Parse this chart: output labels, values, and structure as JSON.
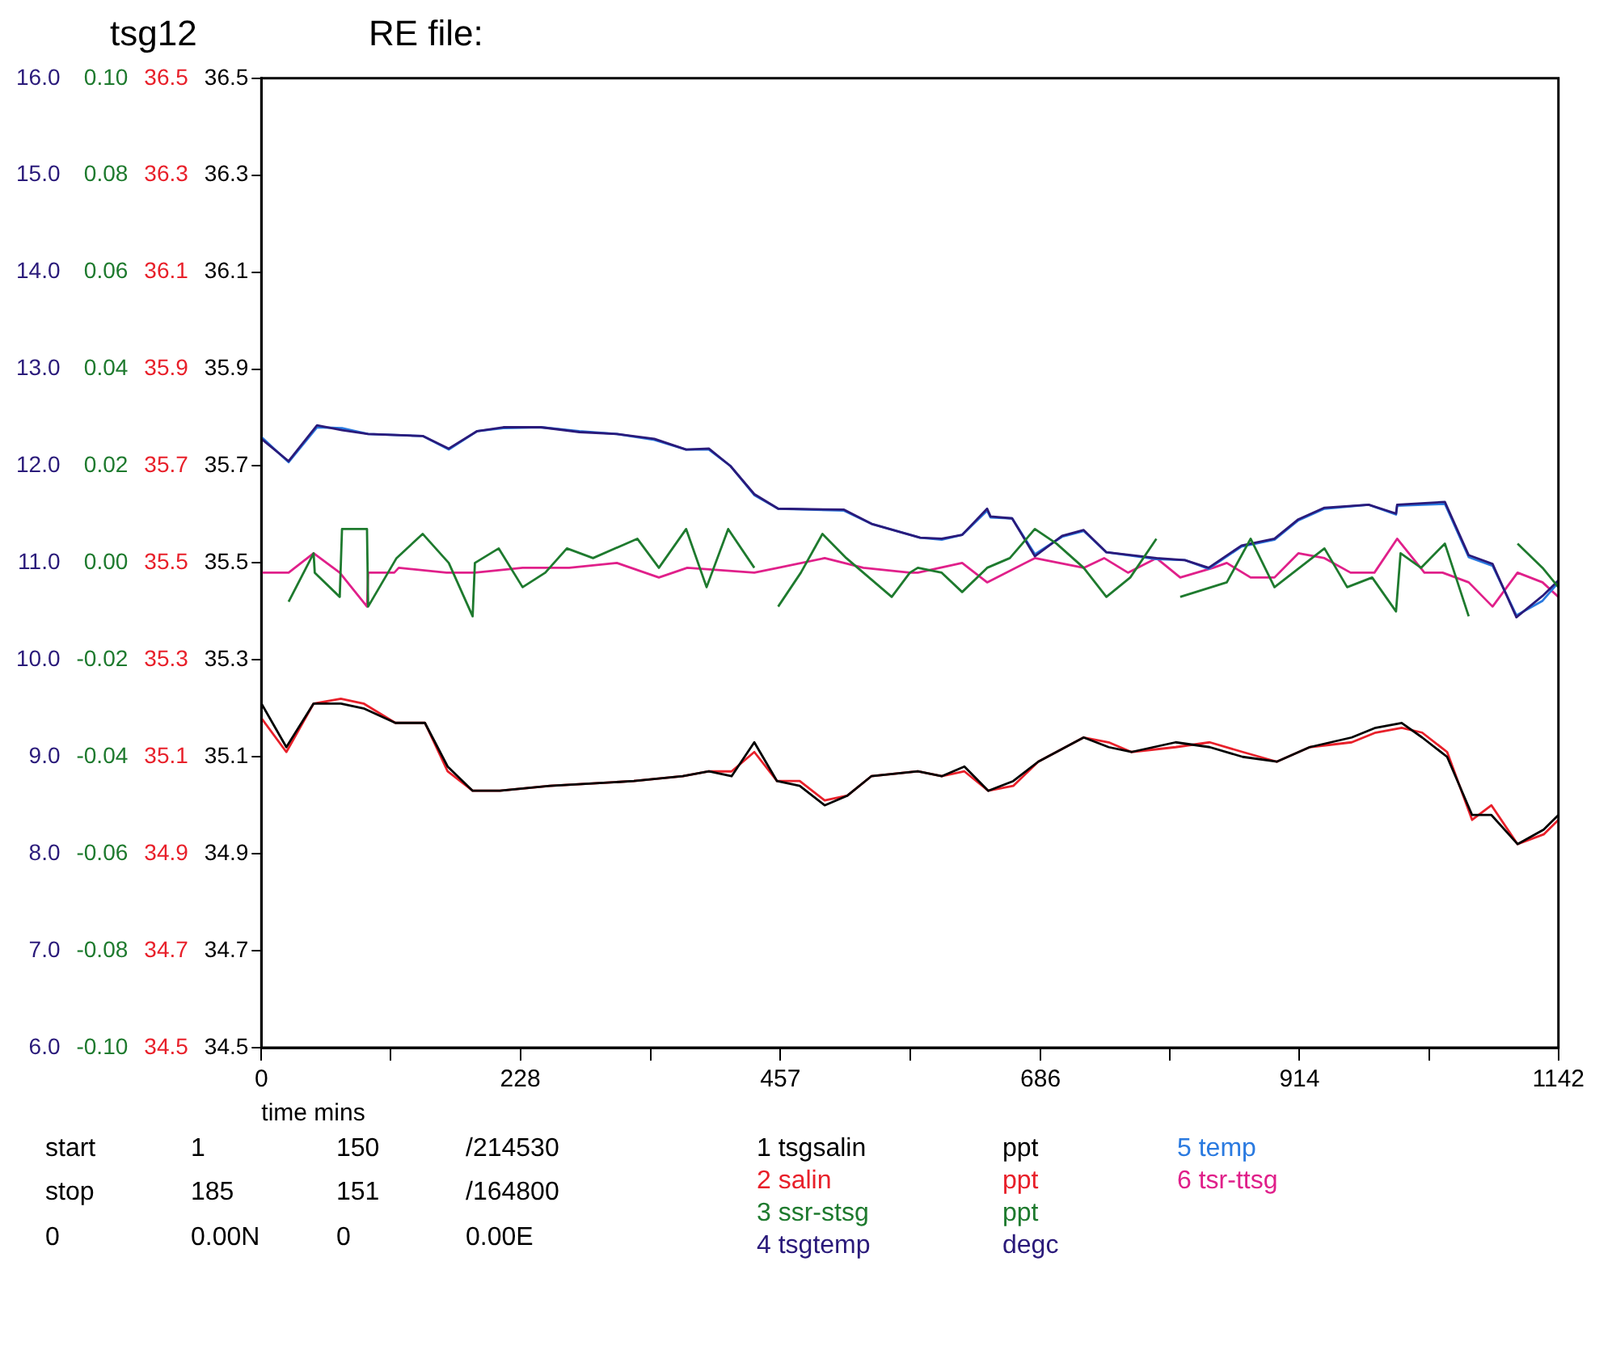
{
  "chart_data": {
    "type": "line",
    "title": "tsg12",
    "subtitle": "RE file:",
    "xlabel": "time mins",
    "xlim": [
      0,
      1142
    ],
    "xticks": [
      0,
      {
        "value": 114,
        "label": null
      },
      228,
      {
        "value": 343,
        "label": null
      },
      457,
      {
        "value": 571,
        "label": null
      },
      686,
      {
        "value": 800,
        "label": null
      },
      914,
      {
        "value": 1028,
        "label": null
      },
      1142
    ],
    "ylim": [
      34.5,
      36.5
    ],
    "yticks": [
      34.5,
      34.7,
      34.9,
      35.1,
      35.3,
      35.5,
      35.7,
      35.9,
      36.1,
      36.3,
      36.5
    ],
    "y2lim": [
      -0.1,
      0.1
    ],
    "y2ticks": [
      {
        "value": -0.1,
        "label": "-0.10"
      },
      {
        "value": -0.08,
        "label": "-0.08"
      },
      {
        "value": -0.06,
        "label": "-0.06"
      },
      {
        "value": -0.04,
        "label": "-0.04"
      },
      {
        "value": -0.02,
        "label": "-0.02"
      },
      {
        "value": 0,
        "label": "0.00"
      },
      {
        "value": 0.02,
        "label": "0.02"
      },
      {
        "value": 0.04,
        "label": "0.04"
      },
      {
        "value": 0.06,
        "label": "0.06"
      },
      {
        "value": 0.08,
        "label": "0.08"
      },
      {
        "value": 0.1,
        "label": "0.10"
      }
    ],
    "y3lim": [
      6,
      16
    ],
    "y3ticks": [
      {
        "value": 6,
        "label": "6.0"
      },
      {
        "value": 7,
        "label": "7.0"
      },
      {
        "value": 8,
        "label": "8.0"
      },
      {
        "value": 9,
        "label": "9.0"
      },
      {
        "value": 10,
        "label": "10.0"
      },
      {
        "value": 11,
        "label": "11.0"
      },
      {
        "value": 12,
        "label": "12.0"
      },
      {
        "value": 13,
        "label": "13.0"
      },
      {
        "value": 14,
        "label": "14.0"
      },
      {
        "value": 15,
        "label": "15.0"
      },
      {
        "value": 16,
        "label": "16.0"
      }
    ],
    "legend": "bottom",
    "annotations": [
      "start",
      "1",
      "150",
      "/214530",
      "stop",
      "185",
      "151",
      "/164800",
      "0",
      "0.00N",
      "0",
      "0.00E",
      "ppt",
      "ppt",
      "ppt",
      "degc",
      "34.5",
      "34.7",
      "34.9",
      "35.1",
      "35.3",
      "35.5",
      "35.7",
      "35.9",
      "36.1",
      "36.3",
      "36.5"
    ],
    "series": [
      {
        "name": "1 tsgsalin",
        "color": "#000000",
        "x": [
          0,
          22,
          46,
          70,
          90,
          118,
          144,
          164,
          186,
          210,
          254,
          328,
          371,
          394,
          414,
          434,
          454,
          474,
          496,
          516,
          537,
          578,
          599,
          619,
          640,
          662,
          684,
          724,
          746,
          766,
          805,
          835,
          864,
          894,
          923,
          960,
          981,
          1004,
          1022,
          1044,
          1066,
          1083,
          1106,
          1129,
          1142
        ],
        "values": [
          35.21,
          35.12,
          35.21,
          35.21,
          35.2,
          35.17,
          35.17,
          35.08,
          35.03,
          35.03,
          35.04,
          35.05,
          35.06,
          35.07,
          35.06,
          35.13,
          35.05,
          35.04,
          35.0,
          35.02,
          35.06,
          35.07,
          35.06,
          35.08,
          35.03,
          35.05,
          35.09,
          35.14,
          35.12,
          35.11,
          35.13,
          35.12,
          35.1,
          35.09,
          35.12,
          35.14,
          35.16,
          35.17,
          35.14,
          35.1,
          34.98,
          34.98,
          34.92,
          34.95,
          34.98
        ]
      },
      {
        "name": "2 salin",
        "color": "#e8202a",
        "x": [
          0,
          22,
          46,
          70,
          90,
          118,
          144,
          164,
          186,
          210,
          254,
          328,
          371,
          394,
          414,
          434,
          454,
          474,
          496,
          516,
          537,
          578,
          599,
          619,
          640,
          662,
          684,
          724,
          746,
          766,
          805,
          835,
          864,
          894,
          923,
          960,
          981,
          1004,
          1022,
          1044,
          1066,
          1083,
          1106,
          1129,
          1142
        ],
        "values": [
          35.18,
          35.11,
          35.21,
          35.22,
          35.21,
          35.17,
          35.17,
          35.07,
          35.03,
          35.03,
          35.04,
          35.05,
          35.06,
          35.07,
          35.07,
          35.11,
          35.05,
          35.05,
          35.01,
          35.02,
          35.06,
          35.07,
          35.06,
          35.07,
          35.03,
          35.04,
          35.09,
          35.14,
          35.13,
          35.11,
          35.12,
          35.13,
          35.11,
          35.09,
          35.12,
          35.13,
          35.15,
          35.16,
          35.15,
          35.11,
          34.97,
          35.0,
          34.92,
          34.94,
          34.97
        ]
      },
      {
        "name": "3 ssr-stsg",
        "color": "#1e7a2e",
        "axis": "y2",
        "x": [
          24,
          46,
          47,
          69,
          71,
          93,
          94,
          119,
          142,
          165,
          186,
          188,
          209,
          230,
          250,
          269,
          292,
          331,
          350,
          374,
          392,
          411,
          434,
          445,
          455,
          475,
          494,
          515,
          555,
          571,
          578,
          599,
          617,
          639,
          659,
          681,
          700,
          724,
          744,
          765,
          788,
          800,
          809,
          850,
          871,
          892,
          936,
          956,
          978,
          999,
          1003,
          1021,
          1042,
          1063,
          1085,
          1106,
          1128,
          1142
        ],
        "values": [
          -0.008,
          0.002,
          -0.002,
          -0.007,
          0.007,
          0.007,
          -0.009,
          0.001,
          0.006,
          0,
          -0.011,
          0,
          0.003,
          -0.005,
          -0.002,
          0.003,
          0.001,
          0.005,
          -0.001,
          0.007,
          -0.005,
          0.007,
          -0.001,
          null,
          -0.009,
          -0.002,
          0.006,
          0.001,
          -0.007,
          -0.002,
          -0.001,
          -0.002,
          -0.006,
          -0.001,
          0.001,
          0.007,
          0.004,
          -0.001,
          -0.007,
          -0.003,
          0.005,
          null,
          -0.007,
          -0.004,
          0.005,
          -0.005,
          0.003,
          -0.005,
          -0.003,
          -0.01,
          0.002,
          -0.001,
          0.004,
          -0.011,
          null,
          0.004,
          -0.001,
          -0.005
        ]
      },
      {
        "name": "4 tsgtemp",
        "color": "#2a1a7a",
        "axis": "y3",
        "x": [
          0,
          24,
          49,
          71,
          94,
          142,
          165,
          190,
          213,
          246,
          280,
          313,
          346,
          374,
          394,
          413,
          434,
          455,
          513,
          538,
          580,
          599,
          617,
          639,
          642,
          661,
          681,
          705,
          724,
          744,
          788,
          813,
          834,
          863,
          892,
          913,
          936,
          975,
          999,
          1000,
          1042,
          1063,
          1084,
          1105,
          1128,
          1142
        ],
        "values": [
          12.28,
          12.05,
          12.42,
          12.37,
          12.33,
          12.31,
          12.18,
          12.36,
          12.4,
          12.4,
          12.35,
          12.33,
          12.28,
          12.17,
          12.18,
          12.0,
          11.71,
          11.56,
          11.55,
          11.4,
          11.26,
          11.25,
          11.29,
          11.56,
          11.48,
          11.46,
          11.07,
          11.28,
          11.34,
          11.11,
          11.05,
          11.03,
          10.95,
          11.18,
          11.25,
          11.45,
          11.57,
          11.6,
          11.51,
          11.6,
          11.63,
          11.08,
          10.99,
          10.44,
          10.66,
          10.82
        ]
      },
      {
        "name": "5 temp",
        "color": "#2a7ae0",
        "axis": "y3",
        "x": [
          0,
          24,
          49,
          71,
          94,
          142,
          165,
          190,
          213,
          246,
          280,
          313,
          346,
          374,
          394,
          413,
          434,
          455,
          513,
          538,
          580,
          599,
          617,
          639,
          642,
          661,
          681,
          705,
          724,
          744,
          788,
          813,
          834,
          863,
          892,
          913,
          936,
          975,
          999,
          1000,
          1042,
          1063,
          1084,
          1105,
          1128,
          1142
        ],
        "values": [
          12.3,
          12.04,
          12.4,
          12.39,
          12.33,
          12.31,
          12.17,
          12.36,
          12.39,
          12.4,
          12.36,
          12.33,
          12.27,
          12.17,
          12.17,
          12.0,
          11.7,
          11.56,
          11.54,
          11.4,
          11.26,
          11.24,
          11.29,
          11.54,
          11.47,
          11.46,
          11.09,
          11.27,
          11.33,
          11.11,
          11.04,
          11.03,
          10.94,
          11.17,
          11.24,
          11.44,
          11.56,
          11.6,
          11.5,
          11.59,
          11.61,
          11.06,
          10.97,
          10.46,
          10.61,
          10.8
        ]
      },
      {
        "name": "6 tsr-ttsg",
        "color": "#e0208a",
        "axis": "y2",
        "x": [
          0,
          24,
          46,
          69,
          93,
          94,
          117,
          121,
          163,
          188,
          230,
          271,
          313,
          350,
          375,
          434,
          455,
          496,
          530,
          571,
          578,
          617,
          639,
          681,
          724,
          742,
          763,
          788,
          809,
          838,
          850,
          871,
          892,
          913,
          936,
          959,
          980,
          1000,
          1024,
          1040,
          1063,
          1084,
          1106,
          1128,
          1142
        ],
        "values": [
          -0.002,
          -0.002,
          0.002,
          -0.002,
          -0.009,
          -0.002,
          -0.002,
          -0.001,
          -0.002,
          -0.002,
          -0.001,
          -0.001,
          0,
          -0.003,
          -0.001,
          -0.002,
          -0.001,
          0.001,
          -0.001,
          -0.002,
          -0.002,
          0,
          -0.004,
          0.001,
          -0.001,
          0.001,
          -0.002,
          0.001,
          -0.003,
          -0.001,
          0,
          -0.003,
          -0.003,
          0.002,
          0.001,
          -0.002,
          -0.002,
          0.005,
          -0.002,
          -0.002,
          -0.004,
          -0.009,
          -0.002,
          -0.004,
          -0.007
        ]
      }
    ]
  }
}
